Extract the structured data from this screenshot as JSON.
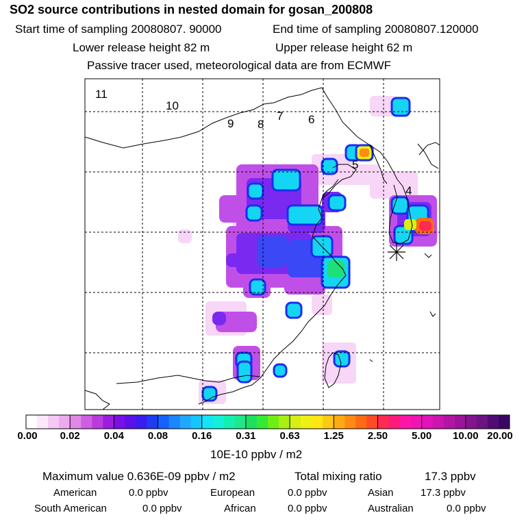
{
  "header": {
    "title": "SO2 source contributions in nested domain for gosan_200808",
    "start_time": "Start time of sampling 20080807. 90000",
    "end_time": "End time of sampling 20080807.120000",
    "lower_height": "Lower release height   82 m",
    "upper_height": "Upper release height   62 m",
    "tracer_note": "Passive tracer used, meteorological data are from ECMWF"
  },
  "map": {
    "region_labels": [
      "11",
      "10",
      "9",
      "8",
      "7",
      "6",
      "5",
      "4"
    ],
    "receptor_marker": "asterisk"
  },
  "colorbar": {
    "tick_labels": [
      "0.00",
      "0.02",
      "0.04",
      "0.08",
      "0.16",
      "0.31",
      "0.63",
      "1.25",
      "2.50",
      "5.00",
      "10.00",
      "20.00"
    ],
    "unit": "10E-10 ppbv / m2",
    "colors": [
      "#ffffff",
      "#fbe8fb",
      "#f5c8f5",
      "#eeaaee",
      "#e088e6",
      "#cf5ee3",
      "#bb3ade",
      "#9b1ee0",
      "#7a10e6",
      "#5a12ea",
      "#3a1cf0",
      "#1f3cf0",
      "#1562ff",
      "#1a86ff",
      "#1fa8ff",
      "#14c6ff",
      "#14e4f6",
      "#14f0d8",
      "#14f0b0",
      "#1ee88a",
      "#1ee060",
      "#34ea34",
      "#70ee14",
      "#a8f014",
      "#d6f014",
      "#f0f014",
      "#ffe614",
      "#ffc814",
      "#ffaa14",
      "#ff8a14",
      "#ff6a14",
      "#ff4a28",
      "#ff2a50",
      "#ff1a7a",
      "#ff14a8",
      "#f014b4",
      "#e014b8",
      "#cc14b0",
      "#b414a4",
      "#9c149a",
      "#84148e",
      "#6c1484",
      "#500c74",
      "#380864"
    ]
  },
  "stats": {
    "max_value": "Maximum value  0.636E-09 ppbv / m2",
    "total_mixing": "Total mixing ratio",
    "total_value": "17.3 ppbv"
  },
  "sources": [
    {
      "label": "American",
      "value": "0.0 ppbv"
    },
    {
      "label": "European",
      "value": "0.0 ppbv"
    },
    {
      "label": "Asian",
      "value": "17.3 ppbv"
    },
    {
      "label": "South American",
      "value": "0.0 ppbv"
    },
    {
      "label": "African",
      "value": "0.0 ppbv"
    },
    {
      "label": "Australian",
      "value": "0.0 ppbv"
    }
  ]
}
